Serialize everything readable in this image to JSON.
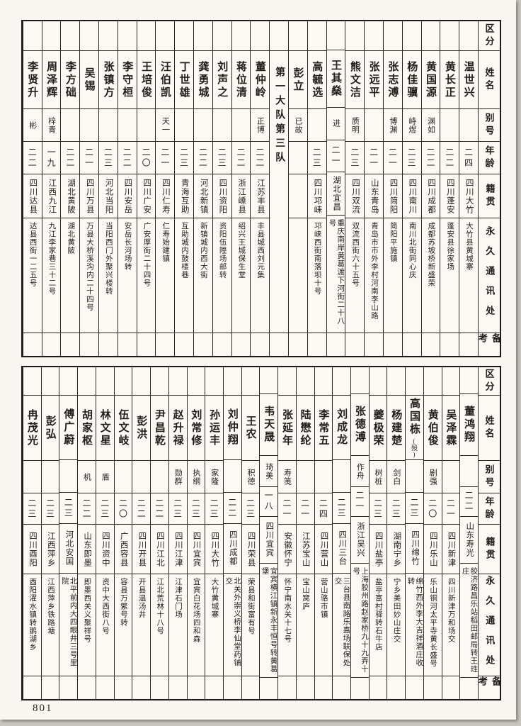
{
  "page": {
    "number": "801"
  },
  "table_headers": [
    "区分",
    "姓名",
    "别号",
    "年龄",
    "籍贯",
    "永久通讯处",
    "备考"
  ],
  "tables": [
    {
      "name": "top-roster",
      "columns": [
        {
          "name": "温世兴",
          "alias": "",
          "age": "二四",
          "origin": "四川大竹",
          "address": "大竹县黄城寨"
        },
        {
          "name": "黄长正",
          "alias": "",
          "age": "二二",
          "origin": "四川蓬安",
          "address": "蓬安县徐家场"
        },
        {
          "name": "黄国源",
          "alias": "渊如",
          "age": "二二",
          "origin": "四川成都",
          "address": "成都苏坡桥新盛荣"
        },
        {
          "name": "杨佳骥",
          "alias": "峙煜",
          "age": "二三",
          "origin": "四川南川",
          "address": "南川北街同心庆"
        },
        {
          "name": "张志溥",
          "alias": "博渊",
          "age": "二一",
          "origin": "四川简阳",
          "address": "简阳平施镇"
        },
        {
          "name": "张远平",
          "alias": "",
          "age": "二一",
          "origin": "山东青岛",
          "address": "青岛市市外李村河南李山路"
        },
        {
          "name": "熊文洁",
          "alias": "质明",
          "age": "二三",
          "origin": "四川双流",
          "address": "双流西街六十五号"
        },
        {
          "name": "王其燊",
          "alias": "进",
          "age": "二一",
          "origin": "湖北宜昌",
          "address": "重庆南岸黄葛渡下河街二十八号"
        },
        {
          "name": "高毓选",
          "alias": "",
          "age": "二三",
          "origin": "四川邛崃",
          "address": "邛崃西街南落坝十号"
        },
        {
          "name": "彭立",
          "alias": "已故",
          "age": "",
          "origin": "",
          "address": ""
        },
        {
          "divider_label": "第一大队第三队"
        },
        {
          "name": "董仲岭",
          "alias": "正博",
          "age": "二二",
          "origin": "江苏丰县",
          "address": "丰县城西刘元集"
        },
        {
          "name": "蒋位清",
          "alias": "",
          "age": "二二",
          "origin": "浙江嵊县",
          "address": "绍兴王城保生堂"
        },
        {
          "name": "刘声之",
          "alias": "",
          "age": "二三",
          "origin": "四川资阳",
          "address": "资阳伍隍场邮转"
        },
        {
          "name": "龚勇城",
          "alias": "",
          "age": "二二",
          "origin": "河北新镇",
          "address": "新镇城内西大街"
        },
        {
          "name": "丁世雄",
          "alias": "",
          "age": "二三",
          "origin": "青海互助",
          "address": "互助城内鼓楼巷"
        },
        {
          "name": "汪伯凯",
          "alias": "天一",
          "age": "二一",
          "origin": "四川仁寿",
          "address": "仁寿始建镇"
        },
        {
          "name": "王培俊",
          "alias": "",
          "age": "二〇",
          "origin": "四川广安",
          "address": "广安厚街二十四号"
        },
        {
          "name": "李守桓",
          "alias": "",
          "age": "二二",
          "origin": "四川安岳",
          "address": "安岳长河场转"
        },
        {
          "name": "张镇方",
          "alias": "",
          "age": "二三",
          "origin": "河北当阳",
          "address": "当阳西门外聚兴楼转"
        },
        {
          "name": "吴锡",
          "alias": "",
          "age": "二一",
          "origin": "四川万县",
          "address": "万县大桥溪沟内二十四号"
        },
        {
          "name": "李方础",
          "alias": "",
          "age": "二二",
          "origin": "湖北黄陂",
          "address": "湖北黄陂"
        },
        {
          "name": "周泽辉",
          "alias": "梓青",
          "age": "一九",
          "origin": "江西九江",
          "address": "九江李家巷三十二号"
        },
        {
          "name": "李贤升",
          "alias": "彬",
          "age": "二二",
          "origin": "四川达县",
          "address": "达县西街一二五号"
        }
      ]
    },
    {
      "name": "bottom-roster",
      "columns": [
        {
          "name": "董鸿翔",
          "alias": "",
          "age": "二二",
          "origin": "山东寿光",
          "address": "胶济路昌乐站稻田邮局转王珄庄"
        },
        {
          "name": "吴泽霖",
          "alias": "",
          "age": "二一",
          "origin": "四川新津",
          "address": "四川新津万和场交"
        },
        {
          "name": "黄伯俊",
          "alias": "剧强",
          "age": "二〇",
          "origin": "四川乐山",
          "address": "乐山铜河太平寺黄长盛号"
        },
        {
          "name": "高国栋",
          "note": "(殁)",
          "alias": "",
          "age": "二三",
          "origin": "四川绵竹",
          "address": "绵竹西外李大吉祥酒庄收转"
        },
        {
          "name": "杨建楚",
          "alias": "剑白",
          "age": "二三",
          "origin": "湖南宁乡",
          "address": "宁乡美田妙山庄交"
        },
        {
          "name": "夔极荣",
          "alias": "树桩",
          "age": "二三",
          "origin": "四川盐亭",
          "address": "盐亭富村驿转石牛店"
        },
        {
          "name": "张德溥",
          "alias": "作舟",
          "age": "二一",
          "origin": "浙江吴兴",
          "address": "上海胶州路赵家桥九十九弄十号"
        },
        {
          "name": "刘成龙",
          "alias": "",
          "age": "二三",
          "origin": "四川三台",
          "address": "三台县南路乐嘉场联保处交"
        },
        {
          "name": "李常五",
          "alias": "",
          "age": "二四",
          "origin": "四川营山",
          "address": "营山骆市镇"
        },
        {
          "name": "陆懋纶",
          "alias": "",
          "age": "二一",
          "origin": "江苏宝山",
          "address": "宝山窝庐"
        },
        {
          "name": "张延年",
          "alias": "寿笺",
          "age": "二一",
          "origin": "安徽怀宁",
          "address": "怀宁南水关十七号"
        },
        {
          "name": "韦天晟",
          "alias": "琦美",
          "age": "一八",
          "origin": "四川宜宾",
          "address": "宜宾横江镇新永丰恒号转黄葛堡"
        },
        {
          "name": "王农",
          "alias": "积德",
          "age": "二三",
          "origin": "四川荣县",
          "address": "荣县和街富有号"
        },
        {
          "name": "刘仲翔",
          "alias": "",
          "age": "二二",
          "origin": "四川成都",
          "address": "北关外崇义桥李仙堂药铺交"
        },
        {
          "name": "孙运丰",
          "alias": "家隆",
          "age": "二三",
          "origin": "四川大竹",
          "address": "大竹黄城寨"
        },
        {
          "name": "刘常修",
          "alias": "执纲",
          "age": "二三",
          "origin": "四川宜宾",
          "address": "宜宾白花场四和森"
        },
        {
          "name": "赵升禄",
          "alias": "勋群",
          "age": "二三",
          "origin": "四川江津",
          "address": "江津石门场"
        },
        {
          "name": "尹昌乾",
          "alias": "",
          "age": "二二",
          "origin": "四川江北",
          "address": "江北荒林十八号"
        },
        {
          "name": "彭洪",
          "alias": "",
          "age": "二二",
          "origin": "四川开县",
          "address": "开县温汤井"
        },
        {
          "name": "伍文岐",
          "alias": "",
          "age": "二〇",
          "origin": "广西容县",
          "address": "容县万綮号转"
        },
        {
          "name": "林文星",
          "alias": "盾",
          "age": "二三",
          "origin": "四川资中",
          "address": "资中大西街八号"
        },
        {
          "name": "胡家枢",
          "alias": "机",
          "age": "二二",
          "origin": "山东即墨",
          "address": "即墨西关义聚祥号"
        },
        {
          "name": "傅广蔚",
          "alias": "",
          "age": "二三",
          "origin": "河北安国",
          "address": "北平前内大四眼井三号里院"
        },
        {
          "name": "彭弘",
          "alias": "",
          "age": "二三",
          "origin": "江西萍乡",
          "address": "江西萍乡铁路塘"
        },
        {
          "name": "冉茂光",
          "alias": "",
          "age": "二三",
          "origin": "四川酉阳",
          "address": "酉阳濯水镇转鹅湖乡"
        }
      ]
    }
  ]
}
